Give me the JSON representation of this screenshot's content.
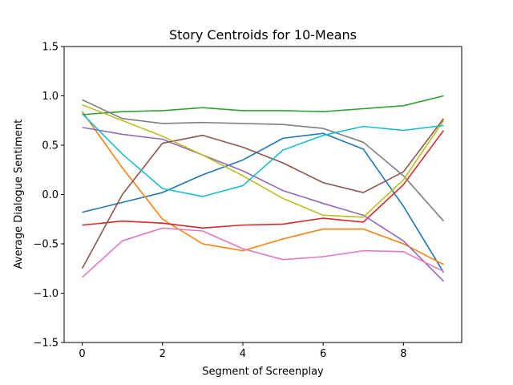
{
  "chart_data": {
    "type": "line",
    "title": "Story Centroids for 10-Means",
    "xlabel": "Segment of Screenplay",
    "ylabel": "Average Dialogue Sentiment",
    "xlim": [
      -0.45,
      9.45
    ],
    "ylim": [
      -1.5,
      1.5
    ],
    "xticks": [
      0,
      2,
      4,
      6,
      8
    ],
    "yticks": [
      -1.5,
      -1.0,
      -0.5,
      0.0,
      0.5,
      1.0,
      1.5
    ],
    "ytick_labels": [
      "−1.5",
      "−1.0",
      "−0.5",
      "0.0",
      "0.5",
      "1.0",
      "1.5"
    ],
    "x": [
      0,
      1,
      2,
      3,
      4,
      5,
      6,
      7,
      8,
      9
    ],
    "grid": false,
    "legend": "none",
    "series": [
      {
        "color": "#1f77b4",
        "values": [
          -0.18,
          -0.08,
          0.02,
          0.2,
          0.35,
          0.57,
          0.62,
          0.46,
          -0.12,
          -0.79
        ]
      },
      {
        "color": "#ff7f0e",
        "values": [
          0.84,
          0.27,
          -0.25,
          -0.5,
          -0.57,
          -0.45,
          -0.35,
          -0.35,
          -0.5,
          -0.71
        ]
      },
      {
        "color": "#2ca02c",
        "values": [
          0.81,
          0.84,
          0.85,
          0.88,
          0.85,
          0.85,
          0.84,
          0.87,
          0.9,
          1.0
        ]
      },
      {
        "color": "#d62728",
        "values": [
          -0.31,
          -0.27,
          -0.29,
          -0.34,
          -0.31,
          -0.3,
          -0.24,
          -0.28,
          0.1,
          0.65
        ]
      },
      {
        "color": "#9467bd",
        "values": [
          0.68,
          0.61,
          0.56,
          0.4,
          0.24,
          0.04,
          -0.09,
          -0.21,
          -0.47,
          -0.88
        ]
      },
      {
        "color": "#8c564b",
        "values": [
          -0.75,
          0.0,
          0.52,
          0.6,
          0.48,
          0.32,
          0.12,
          0.02,
          0.23,
          0.77
        ]
      },
      {
        "color": "#e377c2",
        "values": [
          -0.84,
          -0.47,
          -0.34,
          -0.37,
          -0.55,
          -0.66,
          -0.63,
          -0.57,
          -0.58,
          -0.78
        ]
      },
      {
        "color": "#7f7f7f",
        "values": [
          0.96,
          0.77,
          0.72,
          0.73,
          0.72,
          0.71,
          0.67,
          0.53,
          0.19,
          -0.27
        ]
      },
      {
        "color": "#bcbd22",
        "values": [
          0.91,
          0.75,
          0.59,
          0.4,
          0.19,
          -0.04,
          -0.21,
          -0.23,
          0.15,
          0.75
        ]
      },
      {
        "color": "#17becf",
        "values": [
          0.82,
          0.41,
          0.06,
          -0.02,
          0.09,
          0.45,
          0.6,
          0.69,
          0.65,
          0.7
        ]
      }
    ]
  }
}
